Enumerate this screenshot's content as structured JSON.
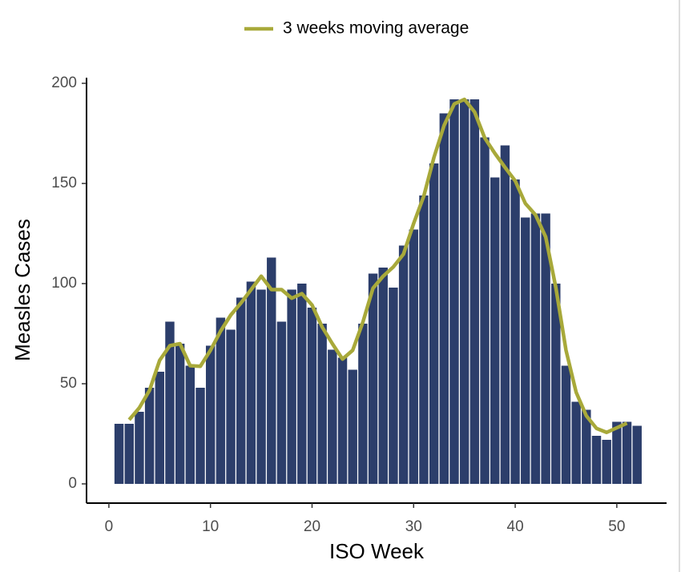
{
  "chart_data": {
    "type": "bar",
    "x_label": "ISO Week",
    "y_label": "Measles Cases",
    "x": [
      1,
      2,
      3,
      4,
      5,
      6,
      7,
      8,
      9,
      10,
      11,
      12,
      13,
      14,
      15,
      16,
      17,
      18,
      19,
      20,
      21,
      22,
      23,
      24,
      25,
      26,
      27,
      28,
      29,
      30,
      31,
      32,
      33,
      34,
      35,
      36,
      37,
      38,
      39,
      40,
      41,
      42,
      43,
      44,
      45,
      46,
      47,
      48,
      49,
      50,
      51,
      52
    ],
    "series": [
      {
        "type": "bar",
        "color": "#2c3e6b",
        "values": [
          30,
          30,
          36,
          48,
          56,
          81,
          70,
          59,
          48,
          69,
          83,
          77,
          93,
          101,
          97,
          113,
          81,
          97,
          100,
          88,
          80,
          67,
          63,
          57,
          80,
          105,
          108,
          98,
          119,
          127,
          144,
          160,
          185,
          192,
          192,
          192,
          173,
          153,
          169,
          152,
          133,
          135,
          135,
          100,
          59,
          41,
          37,
          24,
          22,
          31,
          31,
          29
        ]
      },
      {
        "type": "line",
        "name": "3 weeks moving average",
        "color": "#a8a93a",
        "values": [
          null,
          32,
          38,
          46.7,
          61.7,
          69,
          70,
          59,
          58.7,
          66.7,
          76.3,
          84.3,
          90.3,
          97,
          103.7,
          97,
          97,
          92.7,
          95,
          89.3,
          78.3,
          70,
          62.3,
          66.7,
          80.7,
          97.7,
          103.7,
          108.3,
          114.7,
          130,
          143.7,
          163,
          179,
          189.7,
          192,
          185.7,
          172.7,
          165,
          158,
          151.3,
          140,
          134.3,
          123.3,
          98,
          66.7,
          45.7,
          34,
          27.7,
          25.7,
          28,
          30.3,
          null
        ]
      }
    ],
    "xlim": [
      -2.2,
      54.9
    ],
    "ylim": [
      -9.6,
      202.8
    ],
    "xticks": [
      0,
      10,
      20,
      30,
      40,
      50
    ],
    "yticks": [
      0,
      50,
      100,
      150,
      200
    ],
    "legend": "top"
  }
}
